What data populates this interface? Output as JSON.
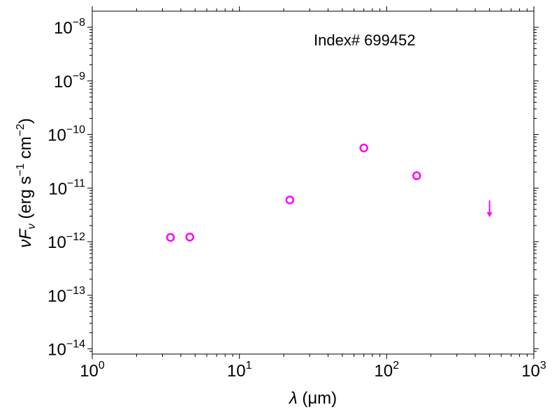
{
  "chart_data": {
    "type": "scatter",
    "annotation": "Index# 699452",
    "xlabel": {
      "symbol": "λ",
      "unit": "(μm)"
    },
    "ylabel": {
      "symbol": "νF",
      "subscript": "ν",
      "unit_prefix": " (erg s",
      "sup1": "−1",
      "unit_mid": " cm",
      "sup2": "−2",
      "unit_suffix": ")"
    },
    "xscale": "log",
    "yscale": "log",
    "xlim": [
      1,
      1000
    ],
    "ylim": [
      8e-15,
      2e-08
    ],
    "xticks": [
      {
        "value": 1,
        "base": "10",
        "exp": "0"
      },
      {
        "value": 10,
        "base": "10",
        "exp": "1"
      },
      {
        "value": 100,
        "base": "10",
        "exp": "2"
      },
      {
        "value": 1000,
        "base": "10",
        "exp": "3"
      }
    ],
    "yticks": [
      {
        "value": 1e-14,
        "base": "10",
        "exp": "−14"
      },
      {
        "value": 1e-13,
        "base": "10",
        "exp": "−13"
      },
      {
        "value": 1e-12,
        "base": "10",
        "exp": "−12"
      },
      {
        "value": 1e-11,
        "base": "10",
        "exp": "−11"
      },
      {
        "value": 1e-10,
        "base": "10",
        "exp": "−10"
      },
      {
        "value": 1e-09,
        "base": "10",
        "exp": "−9"
      },
      {
        "value": 1e-08,
        "base": "10",
        "exp": "−8"
      }
    ],
    "points": [
      {
        "x": 3.4,
        "y": 1.2e-12
      },
      {
        "x": 4.6,
        "y": 1.22e-12
      },
      {
        "x": 22,
        "y": 6e-12
      },
      {
        "x": 70,
        "y": 5.6e-11
      },
      {
        "x": 160,
        "y": 1.7e-11
      }
    ],
    "upper_limits": [
      {
        "x": 500,
        "y": 4.5e-12
      }
    ],
    "marker_color": "#ff00ff",
    "grid": false,
    "legend": "none"
  }
}
